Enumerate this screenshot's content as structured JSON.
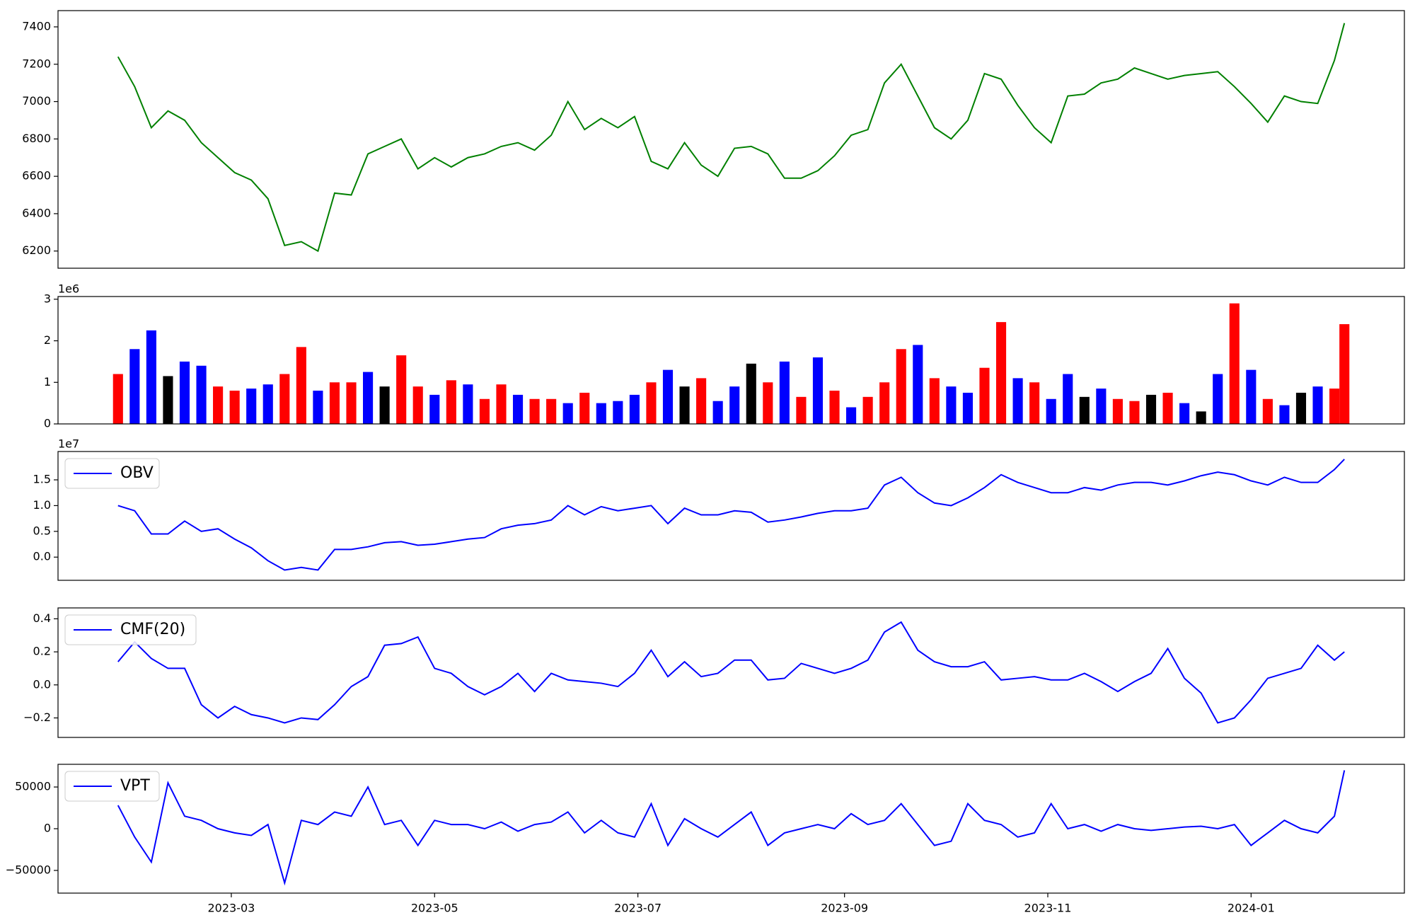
{
  "chart_data": [
    {
      "type": "line",
      "color": "green",
      "x": [
        25,
        30,
        35,
        40,
        45,
        50,
        55,
        60,
        65,
        70,
        75,
        80,
        85,
        90,
        95,
        100,
        105,
        110,
        115,
        120,
        125,
        130,
        135,
        140,
        145,
        150,
        155,
        160,
        165,
        170,
        175,
        180,
        185,
        190,
        195,
        200,
        205,
        210,
        215,
        220,
        225,
        230,
        235,
        240,
        245,
        250,
        255,
        260,
        265,
        270,
        275,
        280,
        285,
        290,
        295,
        300,
        305,
        310,
        315,
        320,
        325,
        330,
        335,
        340,
        345,
        350,
        355,
        360,
        365,
        370,
        375,
        380,
        385,
        390,
        393
      ],
      "values": [
        7240,
        7080,
        6860,
        6950,
        6900,
        6780,
        6700,
        6620,
        6580,
        6480,
        6230,
        6250,
        6200,
        6510,
        6500,
        6720,
        6760,
        6800,
        6640,
        6700,
        6650,
        6700,
        6720,
        6760,
        6780,
        6740,
        6820,
        7000,
        6850,
        6910,
        6860,
        6920,
        6680,
        6640,
        6780,
        6660,
        6600,
        6750,
        6760,
        6720,
        6590,
        6590,
        6630,
        6710,
        6820,
        6850,
        7100,
        7200,
        7030,
        6860,
        6800,
        6900,
        7150,
        7120,
        6980,
        6860,
        6780,
        7030,
        7040,
        7100,
        7120,
        7180,
        7150,
        7120,
        7140,
        7150,
        7160,
        7080,
        6990,
        6890,
        7030,
        7000,
        6990,
        7220,
        7420
      ],
      "xlim": [
        7,
        411
      ],
      "ylim": [
        6108,
        7487
      ],
      "yticks": [
        6200,
        6400,
        6600,
        6800,
        7000,
        7200,
        7400
      ]
    },
    {
      "type": "bar",
      "x": [
        25,
        30,
        35,
        40,
        45,
        50,
        55,
        60,
        65,
        70,
        75,
        80,
        85,
        90,
        95,
        100,
        105,
        110,
        115,
        120,
        125,
        130,
        135,
        140,
        145,
        150,
        155,
        160,
        165,
        170,
        175,
        180,
        185,
        190,
        195,
        200,
        205,
        210,
        215,
        220,
        225,
        230,
        235,
        240,
        245,
        250,
        255,
        260,
        265,
        270,
        275,
        280,
        285,
        290,
        295,
        300,
        305,
        310,
        315,
        320,
        325,
        330,
        335,
        340,
        345,
        350,
        355,
        360,
        365,
        370,
        375,
        380,
        385,
        390,
        393
      ],
      "values": [
        1200000,
        1800000,
        2250000,
        1150000,
        1500000,
        1400000,
        900000,
        800000,
        850000,
        950000,
        1200000,
        1850000,
        800000,
        1000000,
        1000000,
        1250000,
        900000,
        1650000,
        900000,
        700000,
        1050000,
        950000,
        600000,
        950000,
        700000,
        600000,
        600000,
        500000,
        750000,
        500000,
        550000,
        700000,
        1000000,
        1300000,
        900000,
        1100000,
        550000,
        900000,
        1450000,
        1000000,
        1500000,
        650000,
        1600000,
        800000,
        400000,
        650000,
        1000000,
        1800000,
        1900000,
        1100000,
        900000,
        750000,
        1350000,
        2450000,
        1100000,
        1000000,
        600000,
        1200000,
        650000,
        850000,
        600000,
        550000,
        700000,
        750000,
        500000,
        300000,
        1200000,
        2900000,
        1300000,
        600000,
        450000,
        750000,
        900000,
        850000,
        2400000
      ],
      "colors": [
        "red",
        "blue",
        "blue",
        "black",
        "blue",
        "blue",
        "red",
        "red",
        "blue",
        "blue",
        "red",
        "red",
        "blue",
        "red",
        "red",
        "blue",
        "black",
        "red",
        "red",
        "blue",
        "red",
        "blue",
        "red",
        "red",
        "blue",
        "red",
        "red",
        "blue",
        "red",
        "blue",
        "blue",
        "blue",
        "red",
        "blue",
        "black",
        "red",
        "blue",
        "blue",
        "black",
        "red",
        "blue",
        "red",
        "blue",
        "red",
        "blue",
        "red",
        "red",
        "red",
        "blue",
        "red",
        "blue",
        "blue",
        "red",
        "red",
        "blue",
        "red",
        "blue",
        "blue",
        "black",
        "blue",
        "red",
        "red",
        "black",
        "red",
        "blue",
        "black",
        "blue",
        "red",
        "blue",
        "red",
        "blue",
        "black",
        "blue",
        "red",
        "red"
      ],
      "xlim": [
        7,
        411
      ],
      "ylim": [
        0,
        3065000
      ],
      "yticks": [
        {
          "value": 0,
          "label": "0"
        },
        {
          "value": 1000000,
          "label": "1"
        },
        {
          "value": 2000000,
          "label": "2"
        },
        {
          "value": 3000000,
          "label": "3"
        }
      ],
      "y_offset_label": "1e6"
    },
    {
      "type": "line",
      "legend": "upper left",
      "x": [
        25,
        30,
        35,
        40,
        45,
        50,
        55,
        60,
        65,
        70,
        75,
        80,
        85,
        90,
        95,
        100,
        105,
        110,
        115,
        120,
        125,
        130,
        135,
        140,
        145,
        150,
        155,
        160,
        165,
        170,
        175,
        180,
        185,
        190,
        195,
        200,
        205,
        210,
        215,
        220,
        225,
        230,
        235,
        240,
        245,
        250,
        255,
        260,
        265,
        270,
        275,
        280,
        285,
        290,
        295,
        300,
        305,
        310,
        315,
        320,
        325,
        330,
        335,
        340,
        345,
        350,
        355,
        360,
        365,
        370,
        375,
        380,
        385,
        390,
        393
      ],
      "series": [
        {
          "name": "OBV",
          "color": "blue",
          "values": [
            10000000,
            9000000,
            4500000,
            4500000,
            7000000,
            5000000,
            5500000,
            3500000,
            1800000,
            -700000,
            -2500000,
            -2000000,
            -2500000,
            1500000,
            1500000,
            2000000,
            2800000,
            3000000,
            2300000,
            2500000,
            3000000,
            3500000,
            3800000,
            5500000,
            6200000,
            6500000,
            7200000,
            10000000,
            8200000,
            9800000,
            9000000,
            9500000,
            10000000,
            6500000,
            9500000,
            8200000,
            8200000,
            9000000,
            8700000,
            6800000,
            7200000,
            7800000,
            8500000,
            9000000,
            9000000,
            9500000,
            14000000,
            15500000,
            12500000,
            10500000,
            10000000,
            11500000,
            13500000,
            16000000,
            14500000,
            13500000,
            12500000,
            12500000,
            13500000,
            13000000,
            14000000,
            14500000,
            14500000,
            14000000,
            14800000,
            15800000,
            16500000,
            16000000,
            14800000,
            14000000,
            15500000,
            14500000,
            14500000,
            17000000,
            19000000
          ]
        }
      ],
      "xlim": [
        7,
        411
      ],
      "ylim": [
        -4500000,
        20500000
      ],
      "yticks": [
        {
          "value": 0,
          "label": "0.0"
        },
        {
          "value": 5000000,
          "label": "0.5"
        },
        {
          "value": 10000000,
          "label": "1.0"
        },
        {
          "value": 15000000,
          "label": "1.5"
        }
      ],
      "y_offset_label": "1e7"
    },
    {
      "type": "line",
      "legend": "upper left",
      "x": [
        25,
        30,
        35,
        40,
        45,
        50,
        55,
        60,
        65,
        70,
        75,
        80,
        85,
        90,
        95,
        100,
        105,
        110,
        115,
        120,
        125,
        130,
        135,
        140,
        145,
        150,
        155,
        160,
        165,
        170,
        175,
        180,
        185,
        190,
        195,
        200,
        205,
        210,
        215,
        220,
        225,
        230,
        235,
        240,
        245,
        250,
        255,
        260,
        265,
        270,
        275,
        280,
        285,
        290,
        295,
        300,
        305,
        310,
        315,
        320,
        325,
        330,
        335,
        340,
        345,
        350,
        355,
        360,
        365,
        370,
        375,
        380,
        385,
        390,
        393
      ],
      "series": [
        {
          "name": "CMF(20)",
          "color": "blue",
          "values": [
            0.14,
            0.26,
            0.16,
            0.1,
            0.1,
            -0.12,
            -0.2,
            -0.13,
            -0.18,
            -0.2,
            -0.23,
            -0.2,
            -0.21,
            -0.12,
            -0.01,
            0.05,
            0.24,
            0.25,
            0.29,
            0.1,
            0.07,
            -0.01,
            -0.06,
            -0.01,
            0.07,
            -0.04,
            0.07,
            0.03,
            0.02,
            0.01,
            -0.01,
            0.07,
            0.21,
            0.05,
            0.14,
            0.05,
            0.07,
            0.15,
            0.15,
            0.03,
            0.04,
            0.13,
            0.1,
            0.07,
            0.1,
            0.15,
            0.32,
            0.38,
            0.21,
            0.14,
            0.11,
            0.11,
            0.14,
            0.03,
            0.04,
            0.05,
            0.03,
            0.03,
            0.07,
            0.02,
            -0.04,
            0.02,
            0.07,
            0.22,
            0.04,
            -0.05,
            -0.23,
            -0.2,
            -0.09,
            0.04,
            0.07,
            0.1,
            0.24,
            0.15,
            0.2
          ]
        }
      ],
      "xlim": [
        7,
        411
      ],
      "ylim": [
        -0.318,
        0.466
      ],
      "yticks": [
        {
          "value": -0.2,
          "label": "−0.2"
        },
        {
          "value": 0,
          "label": "0.0"
        },
        0.2,
        0.4
      ]
    },
    {
      "type": "line",
      "legend": "upper left",
      "x": [
        25,
        30,
        35,
        40,
        45,
        50,
        55,
        60,
        65,
        70,
        75,
        80,
        85,
        90,
        95,
        100,
        105,
        110,
        115,
        120,
        125,
        130,
        135,
        140,
        145,
        150,
        155,
        160,
        165,
        170,
        175,
        180,
        185,
        190,
        195,
        200,
        205,
        210,
        215,
        220,
        225,
        230,
        235,
        240,
        245,
        250,
        255,
        260,
        265,
        270,
        275,
        280,
        285,
        290,
        295,
        300,
        305,
        310,
        315,
        320,
        325,
        330,
        335,
        340,
        345,
        350,
        355,
        360,
        365,
        370,
        375,
        380,
        385,
        390,
        393
      ],
      "series": [
        {
          "name": "VPT",
          "color": "blue",
          "values": [
            28000,
            -10000,
            -40000,
            55000,
            15000,
            10000,
            0,
            -5000,
            -8000,
            5000,
            -65000,
            10000,
            5000,
            20000,
            15000,
            50000,
            5000,
            10000,
            -20000,
            10000,
            5000,
            5000,
            0,
            8000,
            -3000,
            5000,
            8000,
            20000,
            -5000,
            10000,
            -5000,
            -10000,
            30000,
            -20000,
            12000,
            0,
            -10000,
            5000,
            20000,
            -20000,
            -5000,
            0,
            5000,
            0,
            18000,
            5000,
            10000,
            30000,
            5000,
            -20000,
            -15000,
            30000,
            10000,
            5000,
            -10000,
            -5000,
            30000,
            0,
            5000,
            -3000,
            5000,
            0,
            -2000,
            0,
            2000,
            3000,
            0,
            5000,
            -20000,
            -5000,
            10000,
            0,
            -5000,
            15000,
            70000
          ]
        }
      ],
      "xlim": [
        7,
        411
      ],
      "ylim": [
        -77200,
        77200
      ],
      "yticks": [
        {
          "value": -50000,
          "label": "−50000"
        },
        0,
        50000
      ],
      "xticks": [
        {
          "value": 59,
          "label": "2023-03"
        },
        {
          "value": 120,
          "label": "2023-05"
        },
        {
          "value": 181,
          "label": "2023-07"
        },
        {
          "value": 243,
          "label": "2023-09"
        },
        {
          "value": 304,
          "label": "2023-11"
        },
        {
          "value": 365,
          "label": "2024-01"
        }
      ]
    }
  ]
}
